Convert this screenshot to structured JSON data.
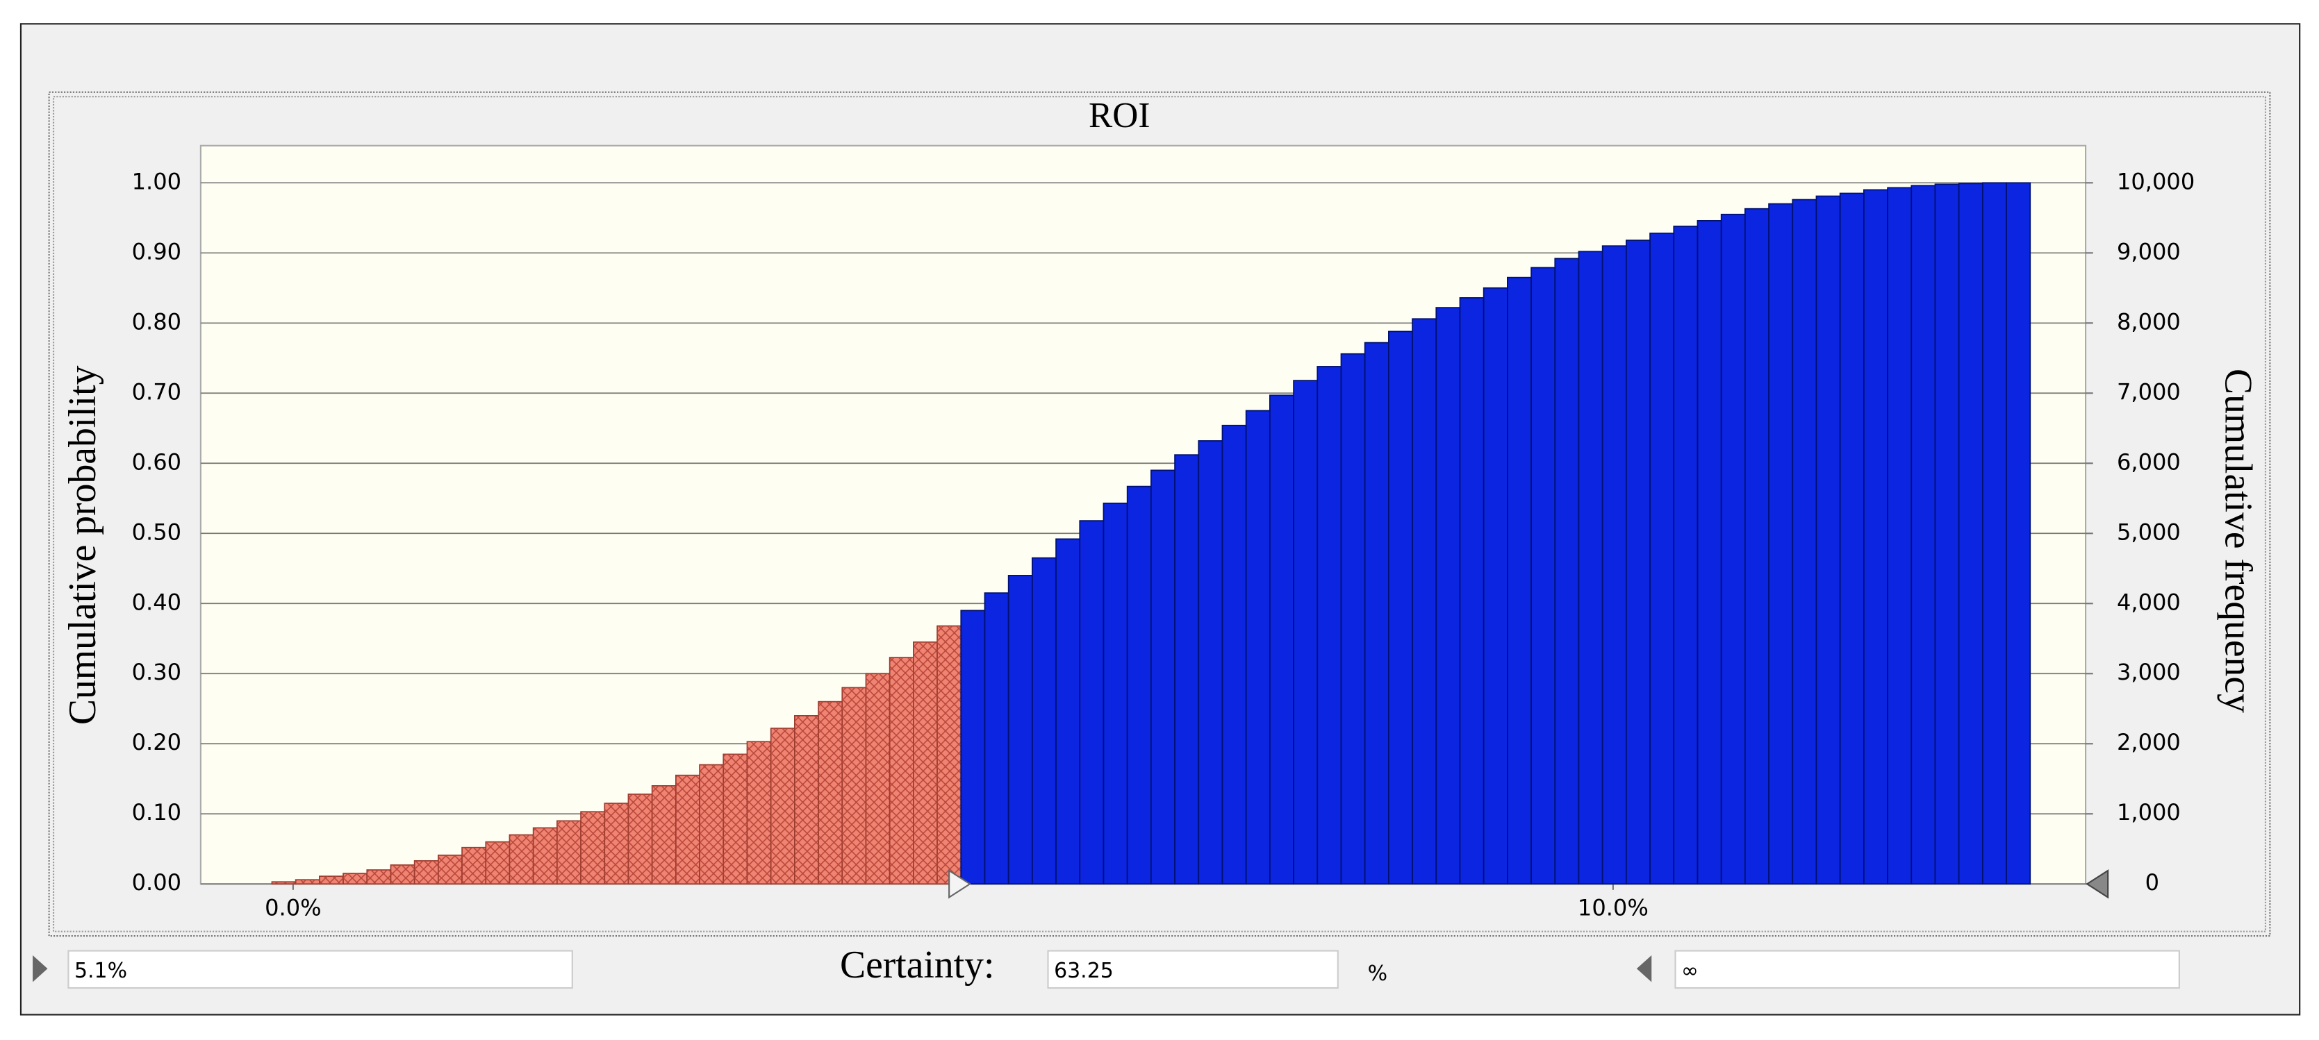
{
  "chart_data": {
    "type": "histogram",
    "title": "ROI",
    "ylabel": "Cumulative probability",
    "y2label": "Cumulative frequency",
    "bins": [
      -0.16,
      0.02,
      0.2,
      0.38,
      0.56,
      0.74,
      0.92,
      1.1,
      1.28,
      1.46,
      1.64,
      1.82,
      2.0,
      2.18,
      2.36,
      2.54,
      2.72,
      2.9,
      3.08,
      3.26,
      3.44,
      3.62,
      3.8,
      3.98,
      4.16,
      4.34,
      4.52,
      4.7,
      4.88,
      5.06,
      5.24,
      5.42,
      5.6,
      5.78,
      5.96,
      6.14,
      6.32,
      6.5,
      6.68,
      6.86,
      7.04,
      7.22,
      7.4,
      7.58,
      7.76,
      7.94,
      8.12,
      8.3,
      8.48,
      8.66,
      8.84,
      9.02,
      9.2,
      9.38,
      9.56,
      9.74,
      9.92,
      10.1,
      10.28,
      10.46,
      10.64,
      10.82,
      11.0,
      11.18,
      11.36,
      11.54,
      11.72,
      11.9,
      12.08,
      12.26,
      12.44,
      12.62,
      12.8,
      12.98,
      13.16
    ],
    "values": [
      0.003,
      0.006,
      0.011,
      0.015,
      0.02,
      0.027,
      0.033,
      0.041,
      0.052,
      0.06,
      0.07,
      0.08,
      0.09,
      0.103,
      0.115,
      0.128,
      0.14,
      0.155,
      0.17,
      0.185,
      0.203,
      0.222,
      0.24,
      0.26,
      0.28,
      0.3,
      0.323,
      0.345,
      0.368,
      0.39,
      0.415,
      0.44,
      0.465,
      0.492,
      0.518,
      0.543,
      0.567,
      0.59,
      0.612,
      0.632,
      0.654,
      0.675,
      0.697,
      0.718,
      0.738,
      0.756,
      0.772,
      0.788,
      0.806,
      0.822,
      0.836,
      0.85,
      0.865,
      0.879,
      0.892,
      0.902,
      0.91,
      0.918,
      0.928,
      0.938,
      0.946,
      0.955,
      0.963,
      0.97,
      0.976,
      0.981,
      0.985,
      0.99,
      0.993,
      0.996,
      0.998,
      0.999,
      1.0,
      1.0
    ],
    "color_below": "#f08472",
    "color_above": "#0b25e0",
    "xlim": [
      -0.7,
      13.58
    ],
    "xticks": [
      {
        "value": 0,
        "label": "0.0%"
      },
      {
        "value": 10,
        "label": "10.0%"
      }
    ],
    "ylim": [
      0,
      1.053
    ],
    "yticks": [
      {
        "value": 0,
        "label": "0.00"
      },
      {
        "value": 0.1,
        "label": "0.10"
      },
      {
        "value": 0.2,
        "label": "0.20"
      },
      {
        "value": 0.3,
        "label": "0.30"
      },
      {
        "value": 0.4,
        "label": "0.40"
      },
      {
        "value": 0.5,
        "label": "0.50"
      },
      {
        "value": 0.6,
        "label": "0.60"
      },
      {
        "value": 0.7,
        "label": "0.70"
      },
      {
        "value": 0.8,
        "label": "0.80"
      },
      {
        "value": 0.9,
        "label": "0.90"
      },
      {
        "value": 1,
        "label": "1.00"
      }
    ],
    "y2lim": [
      0,
      10530
    ],
    "y2ticks": [
      0,
      {
        "value": 1000,
        "label": "1,000"
      },
      {
        "value": 2000,
        "label": "2,000"
      },
      {
        "value": 3000,
        "label": "3,000"
      },
      {
        "value": 4000,
        "label": "4,000"
      },
      {
        "value": 5000,
        "label": "5,000"
      },
      {
        "value": 6000,
        "label": "6,000"
      },
      {
        "value": 7000,
        "label": "7,000"
      },
      {
        "value": 8000,
        "label": "8,000"
      },
      {
        "value": 9000,
        "label": "9,000"
      },
      {
        "value": 10000,
        "label": "10,000"
      }
    ],
    "grid": true,
    "lower_bound": {
      "value": 5.06,
      "label": "5.1%"
    },
    "upper_bound_label": "∞",
    "certainty_label": "Certainty:",
    "certainty": "63.25",
    "certainty_unit": "%"
  }
}
